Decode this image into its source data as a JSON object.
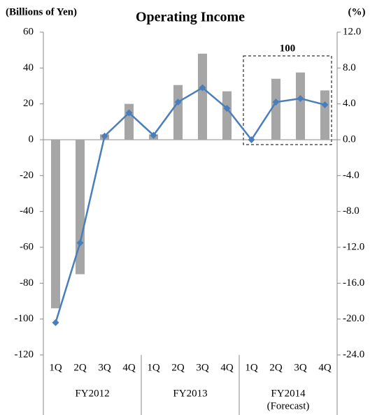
{
  "chart_data": {
    "type": "bar_line",
    "title": "Operating Income",
    "y_label": "(Billions of Yen)",
    "y2_label": "(%)",
    "annotation": "100",
    "categories": [
      "1Q",
      "2Q",
      "3Q",
      "4Q",
      "1Q",
      "2Q",
      "3Q",
      "4Q",
      "1Q",
      "2Q",
      "3Q",
      "4Q"
    ],
    "groups": [
      {
        "name": "FY2012"
      },
      {
        "name": "FY2013"
      },
      {
        "name": "FY2014",
        "note": "(Forecast)"
      }
    ],
    "series": [
      {
        "type": "bar",
        "color": "#a6a6a6",
        "values": [
          -94,
          -75,
          3,
          20,
          3,
          30.5,
          48,
          27,
          0,
          34,
          37.5,
          27.5
        ]
      },
      {
        "type": "line",
        "axis": "y2",
        "color": "#4a7ebb",
        "values": [
          -20.4,
          -11.5,
          0.4,
          3.0,
          0.5,
          4.2,
          5.8,
          3.5,
          0,
          4.2,
          4.6,
          3.9
        ]
      }
    ],
    "ylim": [
      -120,
      60
    ],
    "yticks": [
      60,
      40,
      20,
      0,
      -20,
      -40,
      -60,
      -80,
      -100,
      -120
    ],
    "y2lim": [
      -24,
      12
    ],
    "y2ticks": [
      {
        "value": 12,
        "label": "12.0"
      },
      {
        "value": 8,
        "label": "8.0"
      },
      {
        "value": 4,
        "label": "4.0"
      },
      {
        "value": 0,
        "label": "0.0"
      },
      {
        "value": -4,
        "label": "-4.0"
      },
      {
        "value": -8,
        "label": "-8.0"
      },
      {
        "value": -12,
        "label": "-12.0"
      },
      {
        "value": -16,
        "label": "-16.0"
      },
      {
        "value": -20,
        "label": "-20.0"
      },
      {
        "value": -24,
        "label": "-24.0"
      }
    ]
  }
}
